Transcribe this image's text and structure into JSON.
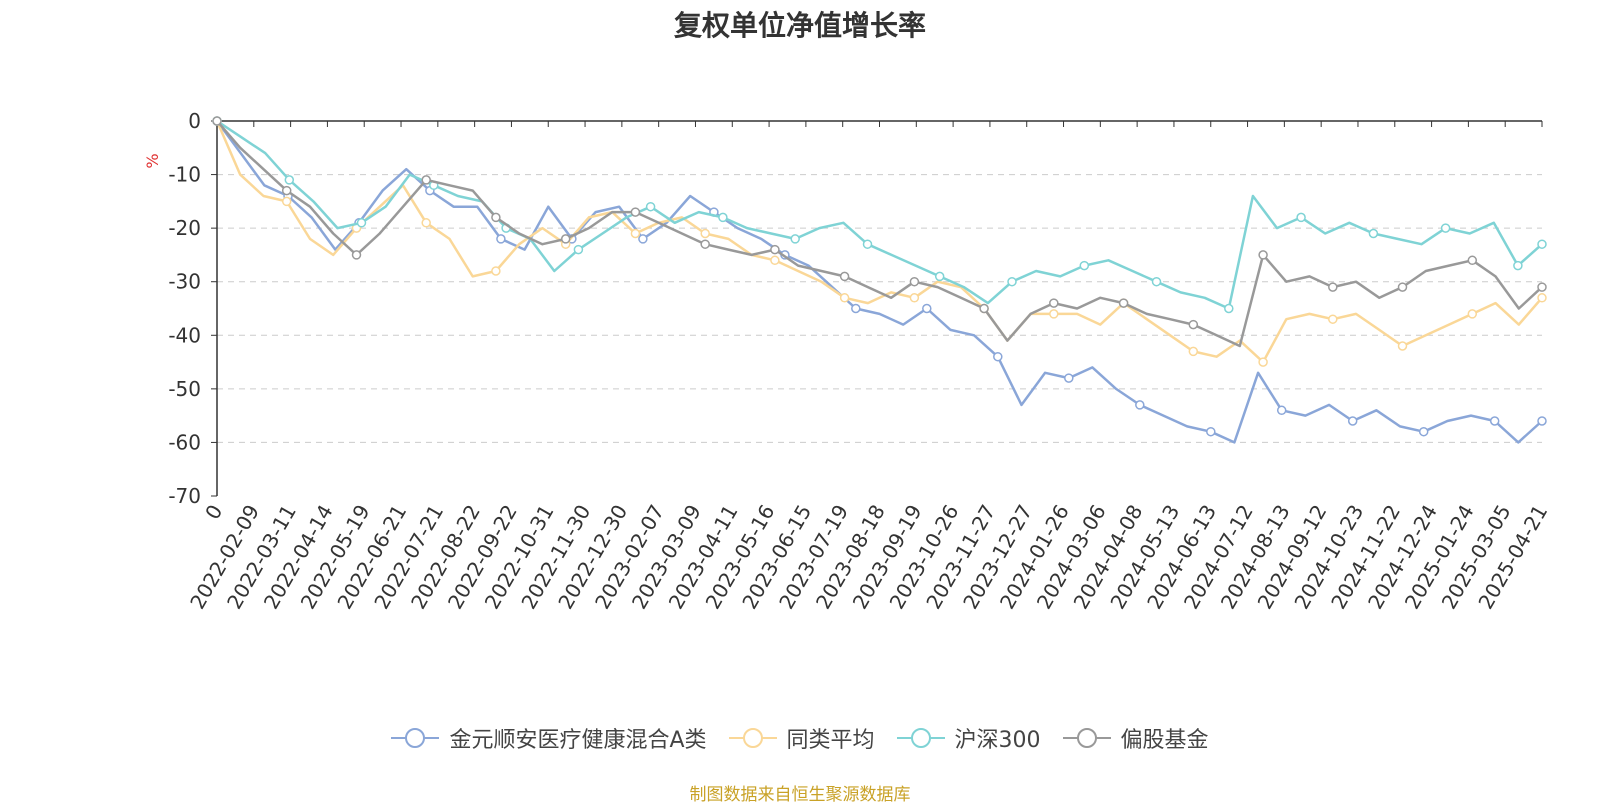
{
  "source_note": "制图数据来自恒生聚源数据库",
  "legend_icon": "circle-line-icon",
  "chart_data": {
    "type": "line",
    "title": "复权单位净值增长率",
    "ylabel": "%",
    "ylabel_color": "#e03131",
    "ylim": [
      -70,
      0
    ],
    "yticks": [
      0,
      -10,
      -20,
      -30,
      -40,
      -50,
      -60,
      -70
    ],
    "grid": true,
    "legend_position": "bottom",
    "x_tick_labels": [
      "0",
      "2022-02-09",
      "2022-03-11",
      "2022-04-14",
      "2022-05-19",
      "2022-06-21",
      "2022-07-21",
      "2022-08-22",
      "2022-09-22",
      "2022-10-31",
      "2022-11-30",
      "2022-12-30",
      "2023-02-07",
      "2023-03-09",
      "2023-04-11",
      "2023-05-16",
      "2023-06-15",
      "2023-07-19",
      "2023-08-18",
      "2023-09-19",
      "2023-10-26",
      "2023-11-27",
      "2023-12-27",
      "2024-01-26",
      "2024-03-06",
      "2024-04-08",
      "2024-05-13",
      "2024-06-13",
      "2024-07-12",
      "2024-08-13",
      "2024-09-12",
      "2024-10-23",
      "2024-11-22",
      "2024-12-24",
      "2025-01-24",
      "2025-03-05",
      "2025-04-21"
    ],
    "series": [
      {
        "name": "金元顺安医疗健康混合A类",
        "color": "#8aa6d8",
        "values": [
          0,
          -6,
          -12,
          -14,
          -18,
          -24,
          -19,
          -13,
          -9,
          -13,
          -16,
          -16,
          -22,
          -24,
          -16,
          -22,
          -17,
          -16,
          -22,
          -19,
          -14,
          -17,
          -20,
          -22,
          -25,
          -27,
          -31,
          -35,
          -36,
          -38,
          -35,
          -39,
          -40,
          -44,
          -53,
          -47,
          -48,
          -46,
          -50,
          -53,
          -55,
          -57,
          -58,
          -60,
          -47,
          -54,
          -55,
          -53,
          -56,
          -54,
          -57,
          -58,
          -56,
          -55,
          -56,
          -60,
          -56
        ]
      },
      {
        "name": "同类平均",
        "color": "#fad797",
        "values": [
          0,
          -10,
          -14,
          -15,
          -22,
          -25,
          -20,
          -16,
          -12,
          -19,
          -22,
          -29,
          -28,
          -23,
          -20,
          -23,
          -18,
          -17,
          -21,
          -19,
          -18,
          -21,
          -22,
          -25,
          -26,
          -28,
          -30,
          -33,
          -34,
          -32,
          -33,
          -30,
          -31,
          -35,
          -41,
          -36,
          -36,
          -36,
          -38,
          -34,
          -37,
          -40,
          -43,
          -44,
          -41,
          -45,
          -37,
          -36,
          -37,
          -36,
          -39,
          -42,
          -40,
          -38,
          -36,
          -34,
          -38,
          -33
        ]
      },
      {
        "name": "沪深300",
        "color": "#7fd3d5",
        "values": [
          0,
          -3,
          -6,
          -11,
          -15,
          -20,
          -19,
          -16,
          -10,
          -12,
          -14,
          -15,
          -20,
          -22,
          -28,
          -24,
          -21,
          -18,
          -16,
          -19,
          -17,
          -18,
          -20,
          -21,
          -22,
          -20,
          -19,
          -23,
          -25,
          -27,
          -29,
          -31,
          -34,
          -30,
          -28,
          -29,
          -27,
          -26,
          -28,
          -30,
          -32,
          -33,
          -35,
          -14,
          -20,
          -18,
          -21,
          -19,
          -21,
          -22,
          -23,
          -20,
          -21,
          -19,
          -27,
          -23
        ]
      },
      {
        "name": "偏股基金",
        "color": "#999999",
        "values": [
          0,
          -5,
          -9,
          -13,
          -16,
          -21,
          -25,
          -21,
          -16,
          -11,
          -12,
          -13,
          -18,
          -21,
          -23,
          -22,
          -20,
          -17,
          -17,
          -19,
          -21,
          -23,
          -24,
          -25,
          -24,
          -27,
          -28,
          -29,
          -31,
          -33,
          -30,
          -31,
          -33,
          -35,
          -41,
          -36,
          -34,
          -35,
          -33,
          -34,
          -36,
          -37,
          -38,
          -40,
          -42,
          -25,
          -30,
          -29,
          -31,
          -30,
          -33,
          -31,
          -28,
          -27,
          -26,
          -29,
          -35,
          -31
        ]
      }
    ]
  }
}
